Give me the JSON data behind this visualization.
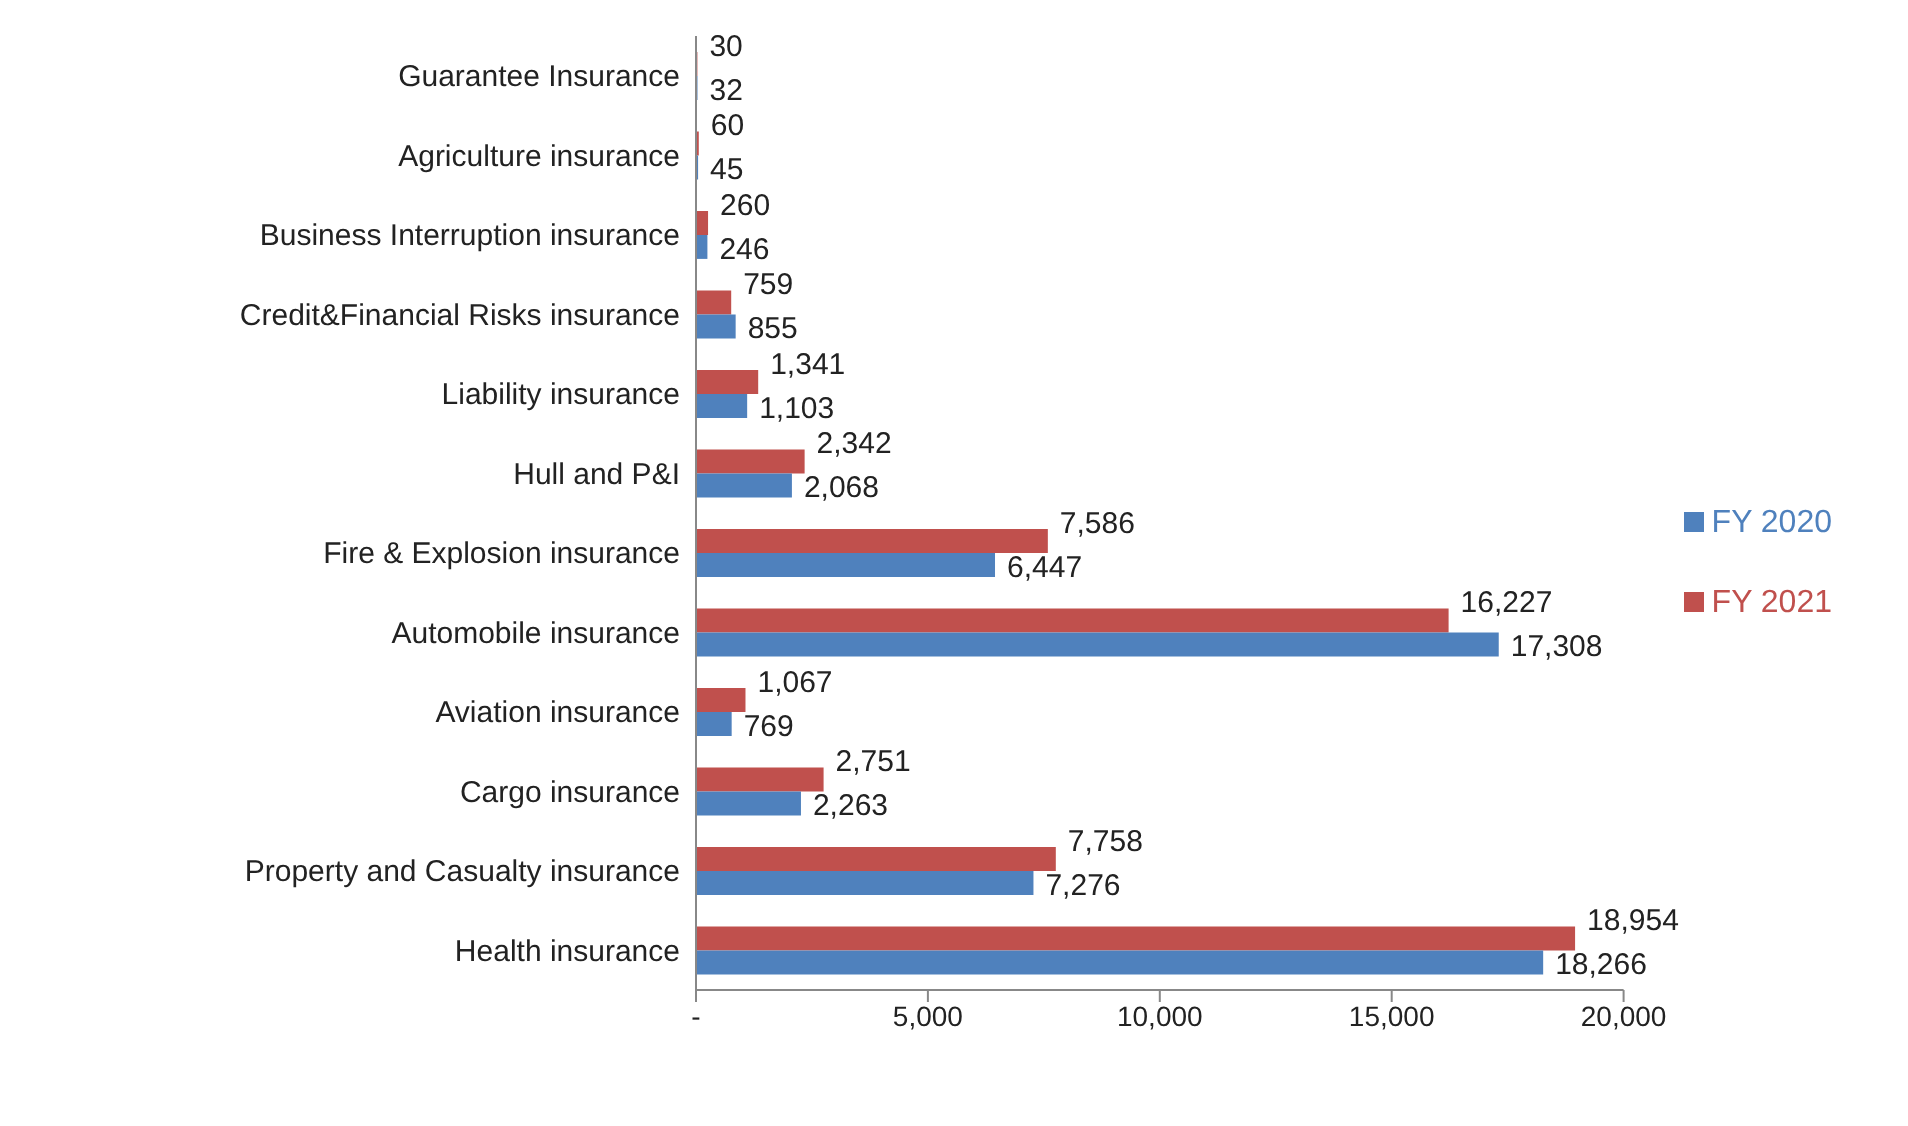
{
  "chart_data": {
    "type": "bar",
    "orientation": "horizontal",
    "categories": [
      "Guarantee Insurance",
      "Agriculture insurance",
      "Business Interruption insurance",
      "Credit&Financial Risks insurance",
      "Liability insurance",
      "Hull and P&I",
      "Fire & Explosion insurance",
      "Automobile insurance",
      "Aviation insurance",
      "Cargo insurance",
      "Property and Casualty insurance",
      "Health insurance"
    ],
    "series": [
      {
        "name": "FY 2021",
        "color": "#c0504d",
        "values": [
          30,
          60,
          260,
          759,
          1341,
          2342,
          7586,
          16227,
          1067,
          2751,
          7758,
          18954
        ],
        "value_labels": [
          "30",
          "60",
          "260",
          "759",
          "1,341",
          "2,342",
          "7,586",
          "16,227",
          "1,067",
          "2,751",
          "7,758",
          "18,954"
        ]
      },
      {
        "name": "FY 2020",
        "color": "#4f81bd",
        "values": [
          32,
          45,
          246,
          855,
          1103,
          2068,
          6447,
          17308,
          769,
          2263,
          7276,
          18266
        ],
        "value_labels": [
          "32",
          "45",
          "246",
          "855",
          "1,103",
          "2,068",
          "6,447",
          "17,308",
          "769",
          "2,263",
          "7,276",
          "18,266"
        ]
      }
    ],
    "xlim": [
      0,
      20000
    ],
    "xticks": [
      {
        "value": 0,
        "label": "-"
      },
      {
        "value": 5000,
        "label": "5,000"
      },
      {
        "value": 10000,
        "label": "10,000"
      },
      {
        "value": 15000,
        "label": "15,000"
      },
      {
        "value": 20000,
        "label": "20,000"
      }
    ],
    "grid": false,
    "legend": "right"
  }
}
